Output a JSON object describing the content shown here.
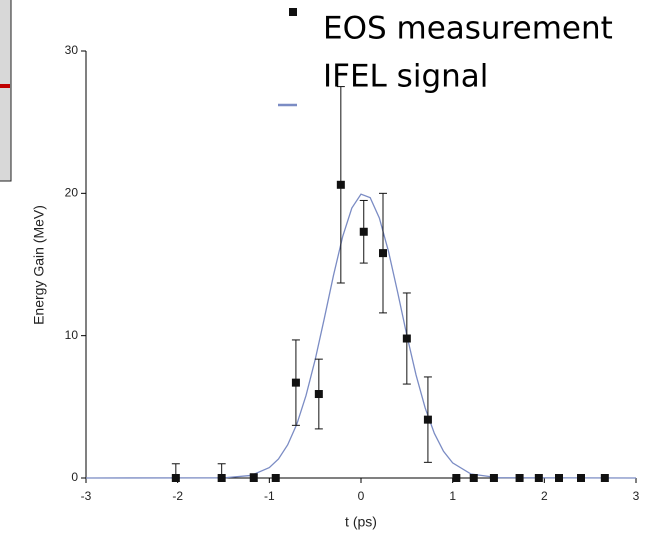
{
  "chart_data": {
    "type": "scatter",
    "x_label": "t (ps)",
    "y_label": "Energy Gain (MeV)",
    "xlim": [
      -3,
      3
    ],
    "ylim": [
      0,
      30
    ],
    "xticks": [
      -3,
      -2,
      -1,
      0,
      1,
      2,
      3
    ],
    "yticks": [
      0,
      10,
      20,
      30
    ],
    "series": [
      {
        "name": "EOS measurement",
        "type": "scatter",
        "color": "#111111",
        "x": [
          -2.02,
          -1.52,
          -1.17,
          -0.93,
          -0.71,
          -0.46,
          -0.22,
          0.03,
          0.24,
          0.5,
          0.73,
          1.04,
          1.23,
          1.45,
          1.73,
          1.94,
          2.16,
          2.4,
          2.66
        ],
        "values": [
          0,
          0,
          0,
          0,
          6.7,
          5.9,
          20.6,
          17.3,
          15.8,
          9.8,
          4.1,
          0,
          0,
          0,
          0,
          0,
          0,
          0,
          0
        ],
        "errors": [
          1,
          1,
          0.3,
          0,
          3,
          2.45,
          6.9,
          2.2,
          4.2,
          3.2,
          3,
          0,
          0,
          0,
          0,
          0,
          0,
          0,
          0
        ]
      },
      {
        "name": "IFEL signal",
        "type": "line",
        "color": "#7b8cc4",
        "x": [
          -3,
          -1.5,
          -1.2,
          -1,
          -0.9,
          -0.8,
          -0.7,
          -0.6,
          -0.5,
          -0.4,
          -0.3,
          -0.2,
          -0.1,
          0,
          0.1,
          0.2,
          0.3,
          0.4,
          0.5,
          0.6,
          0.7,
          0.8,
          0.9,
          1,
          1.2,
          1.5,
          3
        ],
        "values": [
          0,
          0.01,
          0.18,
          0.73,
          1.34,
          2.33,
          3.78,
          5.79,
          8.31,
          11.22,
          14.24,
          16.96,
          18.97,
          19.94,
          19.7,
          18.27,
          15.92,
          13.04,
          10.03,
          7.25,
          4.92,
          3.14,
          1.88,
          1.06,
          0.28,
          0.02,
          0
        ]
      }
    ]
  }
}
